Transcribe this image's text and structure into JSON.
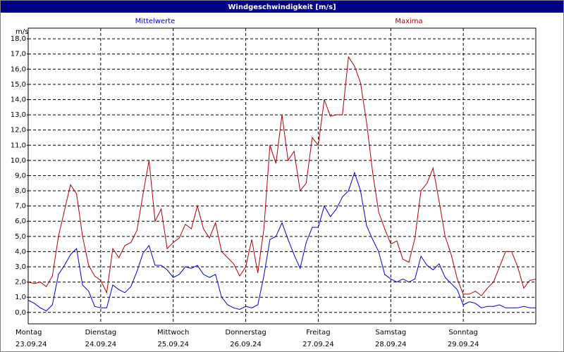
{
  "chart_data": {
    "type": "line",
    "title": "Windgeschwindigkeit [m/s]",
    "y_label": "m/s",
    "x": [
      0,
      2,
      4,
      6,
      8,
      10,
      12,
      14,
      16,
      18,
      20,
      22,
      24,
      26,
      28,
      30,
      32,
      34,
      36,
      38,
      40,
      42,
      44,
      46,
      48,
      50,
      52,
      54,
      56,
      58,
      60,
      62,
      64,
      66,
      68,
      70,
      72,
      74,
      76,
      78,
      80,
      82,
      84,
      86,
      88,
      90,
      92,
      94,
      96,
      98,
      100,
      102,
      104,
      106,
      108,
      110,
      112,
      114,
      116,
      118,
      120,
      122,
      124,
      126,
      128,
      130,
      132,
      134,
      136,
      138,
      140,
      142,
      144,
      146,
      148,
      150,
      152,
      154,
      156,
      158,
      160,
      162,
      164,
      166,
      168
    ],
    "xlim": [
      0,
      168
    ],
    "xticks": [
      {
        "value": 0,
        "label": "Montag",
        "date": "23.09.24"
      },
      {
        "value": 24,
        "label": "Dienstag",
        "date": "24.09.24"
      },
      {
        "value": 48,
        "label": "Mittwoch",
        "date": "25.09.24"
      },
      {
        "value": 72,
        "label": "Donnerstag",
        "date": "26.09.24"
      },
      {
        "value": 96,
        "label": "Freitag",
        "date": "27.09.24"
      },
      {
        "value": 120,
        "label": "Samstag",
        "date": "28.09.24"
      },
      {
        "value": 144,
        "label": "Sonntag",
        "date": "29.09.24"
      }
    ],
    "ylim": [
      -0.75,
      18.7
    ],
    "yticks": [
      {
        "value": 0,
        "label": "0,0"
      },
      {
        "value": 1,
        "label": "1,0"
      },
      {
        "value": 2,
        "label": "2,0"
      },
      {
        "value": 3,
        "label": "3,0"
      },
      {
        "value": 4,
        "label": "4,0"
      },
      {
        "value": 5,
        "label": "5,0"
      },
      {
        "value": 6,
        "label": "6,0"
      },
      {
        "value": 7,
        "label": "7,0"
      },
      {
        "value": 8,
        "label": "8,0"
      },
      {
        "value": 9,
        "label": "9,0"
      },
      {
        "value": 10,
        "label": "10,0"
      },
      {
        "value": 11,
        "label": "11,0"
      },
      {
        "value": 12,
        "label": "12,0"
      },
      {
        "value": 13,
        "label": "13,0"
      },
      {
        "value": 14,
        "label": "14,0"
      },
      {
        "value": 15,
        "label": "15,0"
      },
      {
        "value": 16,
        "label": "16,0"
      },
      {
        "value": 17,
        "label": "17,0"
      },
      {
        "value": 18,
        "label": "18,0"
      }
    ],
    "grid": true,
    "legend": "top",
    "series": [
      {
        "name": "Mittelwerte",
        "color": "#0000cc",
        "values": [
          0.8,
          0.6,
          0.3,
          0.1,
          0.5,
          2.5,
          3.1,
          3.8,
          4.2,
          1.8,
          1.4,
          0.4,
          0.3,
          0.3,
          1.8,
          1.5,
          1.3,
          1.7,
          2.7,
          3.9,
          4.4,
          3.1,
          3.1,
          2.8,
          2.3,
          2.5,
          3.0,
          2.9,
          3.1,
          2.5,
          2.3,
          2.5,
          1.0,
          0.5,
          0.3,
          0.2,
          0.4,
          0.3,
          0.5,
          2.4,
          4.8,
          5.0,
          5.9,
          4.8,
          3.8,
          2.9,
          4.6,
          5.6,
          5.6,
          7.0,
          6.3,
          6.8,
          7.6,
          8.0,
          9.2,
          8.0,
          5.7,
          4.8,
          4.0,
          2.5,
          2.2,
          2.0,
          2.2,
          2.0,
          2.2,
          3.7,
          3.1,
          2.8,
          3.2,
          2.3,
          1.9,
          1.5,
          0.5,
          0.7,
          0.6,
          0.3,
          0.4,
          0.4,
          0.5,
          0.3,
          0.3,
          0.3,
          0.4,
          0.3,
          0.3
        ]
      },
      {
        "name": "Maxima",
        "color": "#b00000",
        "values": [
          2.0,
          1.9,
          2.0,
          1.7,
          2.4,
          5.0,
          6.7,
          8.4,
          7.8,
          5.0,
          3.1,
          2.4,
          2.1,
          1.3,
          4.2,
          3.6,
          4.4,
          4.6,
          5.4,
          7.8,
          10.0,
          6.0,
          6.8,
          4.2,
          4.6,
          4.9,
          5.8,
          5.5,
          7.0,
          5.5,
          4.9,
          5.9,
          4.0,
          3.6,
          3.2,
          2.4,
          3.0,
          4.8,
          2.6,
          5.5,
          11.0,
          9.8,
          13.0,
          10.0,
          10.6,
          8.0,
          8.5,
          11.5,
          11.0,
          14.0,
          12.9,
          13.0,
          13.0,
          16.8,
          16.2,
          15.1,
          12.5,
          9.2,
          6.6,
          5.5,
          4.5,
          4.7,
          3.5,
          3.3,
          4.9,
          8.0,
          8.5,
          9.5,
          7.3,
          5.0,
          3.8,
          2.2,
          1.2,
          1.2,
          1.4,
          1.1,
          1.6,
          2.0,
          3.0,
          4.0,
          4.0,
          3.0,
          1.6,
          2.1,
          2.2
        ]
      }
    ]
  }
}
